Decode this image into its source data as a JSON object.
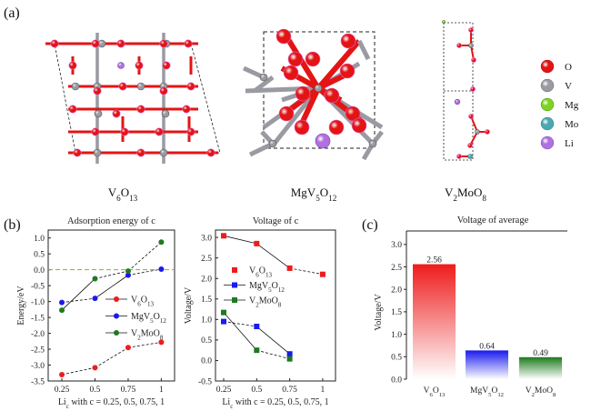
{
  "figure": {
    "panel_a": "(a)",
    "panel_b": "(b)",
    "panel_c": "(c)"
  },
  "structures": [
    {
      "name": "V6O13"
    },
    {
      "name": "MgV5O12"
    },
    {
      "name": "V2MoO8"
    }
  ],
  "element_legend": [
    {
      "symbol": "O",
      "color": "#e41414"
    },
    {
      "symbol": "V",
      "color": "#9a9aa2"
    },
    {
      "symbol": "Mg",
      "color": "#7ed321"
    },
    {
      "symbol": "Mo",
      "color": "#4aa8b0"
    },
    {
      "symbol": "Li",
      "color": "#b070e0"
    }
  ],
  "chart_data": [
    {
      "type": "line",
      "title": "Adsorption energy of c",
      "xlabel": "Li_c with c = 0.25, 0.5, 0.75, 1",
      "ylabel": "Energy/eV",
      "x": [
        0.25,
        0.5,
        0.75,
        1
      ],
      "xticks": [
        "0.25",
        "0.5",
        "0.75",
        "1"
      ],
      "ylim": [
        -3.5,
        1.25
      ],
      "yticks": [
        "-3.5",
        "-3.0",
        "-2.5",
        "-2.0",
        "-1.5",
        "-1.0",
        "-0.5",
        "0.0",
        "0.5",
        "1.0"
      ],
      "reference_line": {
        "y": 0,
        "color": "#a0a040"
      },
      "marker": "circle",
      "legend_position": "center-right",
      "series": [
        {
          "name": "V6O13",
          "color": "#ee1c1c",
          "values": [
            -3.3,
            -3.08,
            -2.45,
            -2.28
          ]
        },
        {
          "name": "MgV5O12",
          "color": "#1a1aee",
          "values": [
            -1.03,
            -0.9,
            -0.17,
            0.02
          ]
        },
        {
          "name": "V2MoO8",
          "color": "#1e7a1e",
          "values": [
            -1.27,
            -0.28,
            -0.04,
            0.87
          ]
        }
      ]
    },
    {
      "type": "line",
      "title": "Voltage of c",
      "xlabel": "Li_c with c = 0.25, 0.5, 0.75, 1",
      "ylabel": "Voltage/V",
      "x": [
        0.25,
        0.5,
        0.75,
        1
      ],
      "xticks": [
        "0.25",
        "0.5",
        "0.75",
        "1"
      ],
      "ylim": [
        -0.5,
        3.18
      ],
      "yticks": [
        "-0.5",
        "0.0",
        "0.5",
        "1.0",
        "1.5",
        "2.0",
        "2.5",
        "3.0"
      ],
      "marker": "square",
      "legend_position": "center",
      "series": [
        {
          "name": "V6O13",
          "color": "#ee1c1c",
          "values": [
            3.04,
            2.85,
            2.25,
            2.1
          ]
        },
        {
          "name": "MgV5O12",
          "color": "#1a1aee",
          "values": [
            0.95,
            0.83,
            0.16,
            null
          ]
        },
        {
          "name": "V2MoO8",
          "color": "#1e7a1e",
          "values": [
            1.17,
            0.25,
            0.04,
            null
          ]
        }
      ]
    },
    {
      "type": "bar",
      "title": "Voltage of average",
      "ylabel": "Voltage/V",
      "ylim": [
        0,
        3.3
      ],
      "yticks": [
        "0.0",
        "0.5",
        "1.0",
        "1.5",
        "2.0",
        "2.5",
        "3.0"
      ],
      "categories": [
        "V6O13",
        "MgV5O12",
        "V2MoO8"
      ],
      "values": [
        2.56,
        0.64,
        0.49
      ],
      "data_labels": [
        "2.56",
        "0.64",
        "0.49"
      ],
      "colors": [
        "#ee1c1c",
        "#1a1aee",
        "#1e7a1e"
      ]
    }
  ]
}
